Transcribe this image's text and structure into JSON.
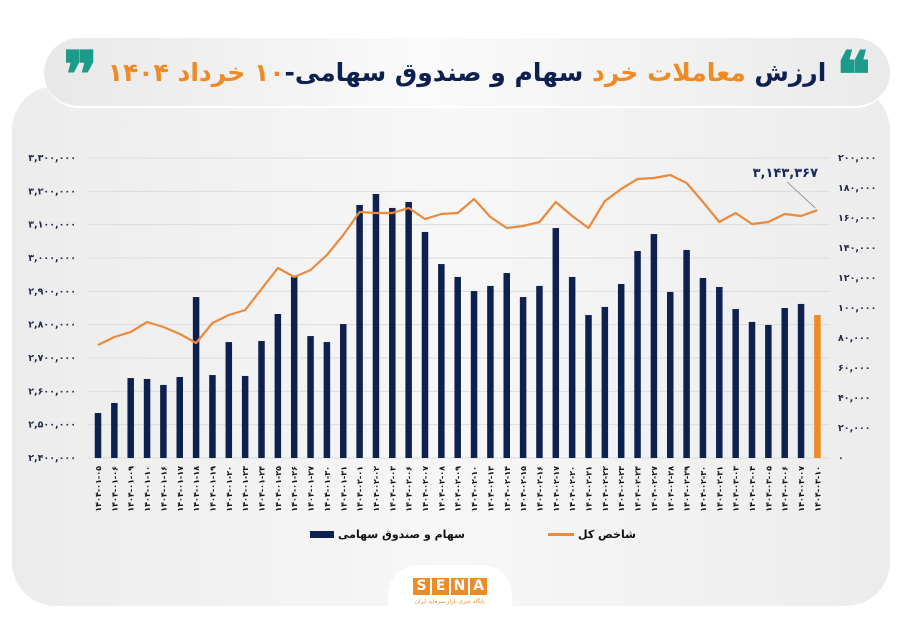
{
  "header": {
    "title_parts": [
      {
        "text": "ارزش",
        "color": "navy"
      },
      {
        "text": "معاملات خرد",
        "color": "orange"
      },
      {
        "text": "سهام و صندوق سهامی-",
        "color": "navy"
      },
      {
        "text": "۱۰ خرداد ۱۴۰۴",
        "color": "orange"
      }
    ],
    "quote_open": "❝",
    "quote_close": "❞"
  },
  "colors": {
    "bar": "#0e2050",
    "bar_highlight": "#f08a24",
    "line": "#e98a3c",
    "grid": "#dcdcdc",
    "quote": "#1c9a8a",
    "accent": "#f08a24"
  },
  "legend": {
    "bars_label": "سهام و صندوق سهامی",
    "line_label": "شاخص کل"
  },
  "annotation": {
    "last_value_label": "۳,۱۴۳,۳۶۷"
  },
  "logo": {
    "letters": [
      "S",
      "E",
      "N",
      "A"
    ],
    "subtitle": "پایگاه خبری بازار سرمایه ایران"
  },
  "chart_data": {
    "type": "bar+line",
    "title": "ارزش معاملات خرد سهام و صندوق سهامی-۱۰ خرداد ۱۴۰۴",
    "categories": [
      "۱۴۰۴-۰۱-۰۵",
      "۱۴۰۴-۰۱-۰۶",
      "۱۴۰۴-۰۱-۰۹",
      "۱۴۰۴-۰۱-۱۰",
      "۱۴۰۴-۰۱-۱۶",
      "۱۴۰۴-۰۱-۱۷",
      "۱۴۰۴-۰۱-۱۸",
      "۱۴۰۴-۰۱-۱۹",
      "۱۴۰۴-۰۱-۲۰",
      "۱۴۰۴-۰۱-۲۳",
      "۱۴۰۴-۰۱-۲۴",
      "۱۴۰۴-۰۱-۲۵",
      "۱۴۰۴-۰۱-۲۶",
      "۱۴۰۴-۰۱-۲۷",
      "۱۴۰۴-۰۱-۳۰",
      "۱۴۰۴-۰۱-۳۱",
      "۱۴۰۴-۰۲-۰۱",
      "۱۴۰۴-۰۲-۰۲",
      "۱۴۰۴-۰۲-۰۳",
      "۱۴۰۴-۰۲-۰۶",
      "۱۴۰۴-۰۲-۰۷",
      "۱۴۰۴-۰۲-۰۸",
      "۱۴۰۴-۰۲-۰۹",
      "۱۴۰۴-۰۲-۱۰",
      "۱۴۰۴-۰۲-۱۳",
      "۱۴۰۴-۰۲-۱۴",
      "۱۴۰۴-۰۲-۱۵",
      "۱۴۰۴-۰۲-۱۶",
      "۱۴۰۴-۰۲-۱۷",
      "۱۴۰۴-۰۲-۲۰",
      "۱۴۰۴-۰۲-۲۱",
      "۱۴۰۴-۰۲-۲۲",
      "۱۴۰۴-۰۲-۲۳",
      "۱۴۰۴-۰۲-۲۴",
      "۱۴۰۴-۰۲-۲۷",
      "۱۴۰۴-۰۲-۲۸",
      "۱۴۰۴-۰۲-۲۹",
      "۱۴۰۴-۰۲-۳۰",
      "۱۴۰۴-۰۲-۳۱",
      "۱۴۰۴-۰۳-۰۳",
      "۱۴۰۴-۰۳-۰۴",
      "۱۴۰۴-۰۳-۰۵",
      "۱۴۰۴-۰۳-۰۶",
      "۱۴۰۴-۰۳-۰۷",
      "۱۴۰۴-۰۳-۱۰"
    ],
    "series": [
      {
        "name": "سهام و صندوق سهامی",
        "type": "bar",
        "axis": "right",
        "values": [
          30000,
          36700,
          53300,
          52700,
          48700,
          54000,
          107300,
          55300,
          77300,
          54700,
          78000,
          96000,
          120700,
          81300,
          77300,
          89300,
          168700,
          176000,
          166700,
          170700,
          150700,
          129300,
          120700,
          111300,
          114700,
          123300,
          107300,
          114700,
          153300,
          120700,
          95300,
          100700,
          116000,
          138000,
          149300,
          110700,
          138700,
          120000,
          114000,
          99300,
          90700,
          88700,
          100000,
          102700,
          95300
        ]
      },
      {
        "name": "شاخص کل",
        "type": "line",
        "axis": "left",
        "values": [
          2739000,
          2763000,
          2778000,
          2808000,
          2793000,
          2772000,
          2745000,
          2805000,
          2829000,
          2844000,
          2907000,
          2970000,
          2943000,
          2964000,
          3009000,
          3069000,
          3138000,
          3135000,
          3135000,
          3150000,
          3117000,
          3132000,
          3135000,
          3177000,
          3123000,
          3090000,
          3096000,
          3108000,
          3168000,
          3126000,
          3090000,
          3171000,
          3207000,
          3237000,
          3240000,
          3249000,
          3225000,
          3168000,
          3108000,
          3135000,
          3102000,
          3108000,
          3132000,
          3126000,
          3143367
        ]
      }
    ],
    "left_axis": {
      "ylim": [
        2400000,
        3300000
      ],
      "ticks": [
        "۲,۴۰۰,۰۰۰",
        "۲,۵۰۰,۰۰۰",
        "۲,۶۰۰,۰۰۰",
        "۲,۷۰۰,۰۰۰",
        "۲,۸۰۰,۰۰۰",
        "۲,۹۰۰,۰۰۰",
        "۳,۰۰۰,۰۰۰",
        "۳,۱۰۰,۰۰۰",
        "۳,۲۰۰,۰۰۰",
        "۳,۳۰۰,۰۰۰"
      ]
    },
    "right_axis": {
      "ylim": [
        0,
        200000
      ],
      "ticks": [
        "۰",
        "۲۰,۰۰۰",
        "۴۰,۰۰۰",
        "۶۰,۰۰۰",
        "۸۰,۰۰۰",
        "۱۰۰,۰۰۰",
        "۱۲۰,۰۰۰",
        "۱۴۰,۰۰۰",
        "۱۶۰,۰۰۰",
        "۱۸۰,۰۰۰",
        "۲۰۰,۰۰۰"
      ]
    },
    "highlight_last_bar": true,
    "grid": true,
    "legend_position": "bottom",
    "annotations": [
      {
        "index": 44,
        "text": "۳,۱۴۳,۳۶۷",
        "series": "شاخص کل"
      }
    ]
  }
}
